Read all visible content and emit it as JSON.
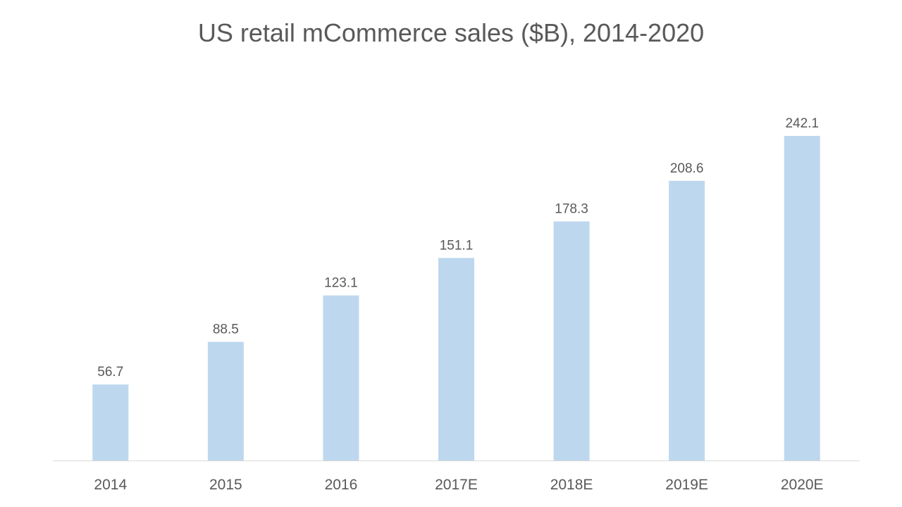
{
  "chart_data": {
    "type": "bar",
    "title": "US retail mCommerce sales ($B), 2014-2020",
    "categories": [
      "2014",
      "2015",
      "2016",
      "2017E",
      "2018E",
      "2019E",
      "2020E"
    ],
    "values": [
      56.7,
      88.5,
      123.1,
      151.1,
      178.3,
      208.6,
      242.1
    ],
    "data_labels": [
      "56.7",
      "88.5",
      "123.1",
      "151.1",
      "178.3",
      "208.6",
      "242.1"
    ],
    "xlabel": "",
    "ylabel": "",
    "ylim": [
      0,
      242.1
    ],
    "grid": false,
    "legend": "none",
    "bar_color": "#bdd7ee",
    "text_color": "#595959",
    "axis_color": "#d9d9d9"
  }
}
